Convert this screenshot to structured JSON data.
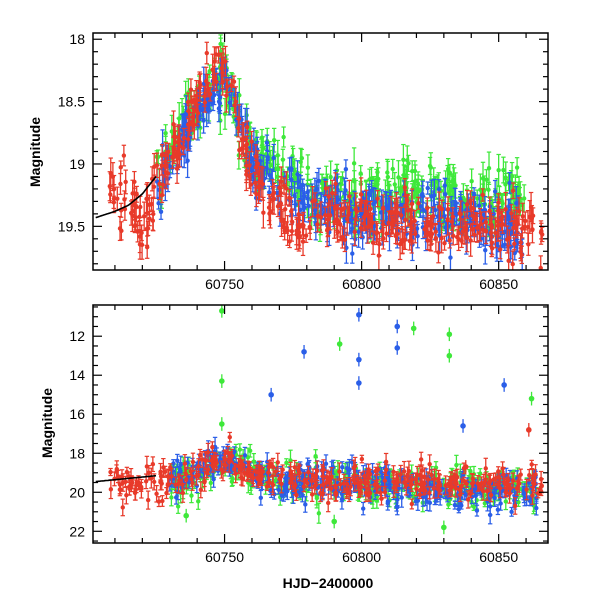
{
  "chart_data": [
    {
      "type": "scatter",
      "panel": "top",
      "title": "",
      "xlabel": "",
      "ylabel": "Magnitude",
      "xlim": [
        60702,
        60868
      ],
      "ylim": [
        19.85,
        17.95
      ],
      "y_inverted": true,
      "x_ticks": [
        60750,
        60800,
        60850
      ],
      "x_tick_labels": [
        "60750",
        "60800",
        "60850"
      ],
      "y_ticks": [
        18,
        18.5,
        19,
        19.5
      ],
      "y_tick_labels": [
        "18",
        "18.5",
        "19",
        "19.5"
      ],
      "grid": false,
      "legend": "none",
      "series": [
        {
          "color": "#e83a2a",
          "approx_x": [
            60708,
            60712,
            60716,
            60720,
            60728,
            60735,
            60742,
            60747,
            60752,
            60760,
            60775,
            60800,
            60825,
            60850,
            60866
          ],
          "approx_y": [
            19.1,
            19.3,
            19.4,
            19.5,
            19.0,
            18.8,
            18.4,
            18.1,
            18.4,
            19.1,
            19.45,
            19.45,
            19.5,
            19.5,
            19.55
          ]
        },
        {
          "color": "#2a5ee8",
          "approx_x": [
            60725,
            60740,
            60750,
            60760,
            60780,
            60800,
            60820,
            60840,
            60860
          ],
          "approx_y": [
            19.2,
            18.6,
            18.3,
            19.0,
            19.3,
            19.4,
            19.4,
            19.45,
            19.5
          ]
        },
        {
          "color": "#3ee83a",
          "approx_x": [
            60725,
            60740,
            60750,
            60760,
            60780,
            60800,
            60820,
            60840,
            60860
          ],
          "approx_y": [
            19.1,
            18.5,
            18.3,
            18.9,
            19.2,
            19.3,
            19.2,
            19.3,
            19.3
          ]
        },
        {
          "color": "#000000",
          "style": "line",
          "approx_x": [
            60703,
            60710,
            60715,
            60720,
            60725
          ],
          "approx_y": [
            19.43,
            19.38,
            19.33,
            19.24,
            19.1
          ]
        }
      ]
    },
    {
      "type": "scatter",
      "panel": "bottom",
      "title": "",
      "xlabel": "HJD−2400000",
      "ylabel": "Magnitude",
      "xlim": [
        60702,
        60868
      ],
      "ylim": [
        22.6,
        10.4
      ],
      "y_inverted": true,
      "x_ticks": [
        60750,
        60800,
        60850
      ],
      "x_tick_labels": [
        "60750",
        "60800",
        "60850"
      ],
      "y_ticks": [
        12,
        14,
        16,
        18,
        20,
        22
      ],
      "y_tick_labels": [
        "12",
        "14",
        "16",
        "18",
        "20",
        "22"
      ],
      "grid": false,
      "legend": "none",
      "series": [
        {
          "color": "#e83a2a",
          "approx_x": [
            60708,
            60715,
            60725,
            60740,
            60750,
            60760,
            60780,
            60800,
            60820,
            60840,
            60860,
            60866
          ],
          "approx_y": [
            19.3,
            19.5,
            19.2,
            18.8,
            18.2,
            19.1,
            19.4,
            19.5,
            19.5,
            19.6,
            19.5,
            19.6
          ],
          "outliers": [
            [
              60838,
              18.7
            ],
            [
              60861,
              16.8
            ]
          ]
        },
        {
          "color": "#2a5ee8",
          "approx_x": [
            60730,
            60750,
            60770,
            60790,
            60810,
            60830,
            60850,
            60865
          ],
          "approx_y": [
            19.3,
            18.4,
            19.4,
            19.6,
            19.6,
            19.8,
            19.9,
            19.8
          ],
          "outliers": [
            [
              60767,
              15.0
            ],
            [
              60779,
              12.8
            ],
            [
              60799,
              10.9
            ],
            [
              60799,
              13.2
            ],
            [
              60799,
              14.4
            ],
            [
              60813,
              11.5
            ],
            [
              60813,
              12.6
            ],
            [
              60837,
              16.6
            ],
            [
              60852,
              14.5
            ]
          ]
        },
        {
          "color": "#3ee83a",
          "approx_x": [
            60730,
            60750,
            60770,
            60790,
            60810,
            60830,
            60850,
            60865
          ],
          "approx_y": [
            19.4,
            18.5,
            19.5,
            19.6,
            19.7,
            19.8,
            19.7,
            19.8
          ],
          "outliers": [
            [
              60749,
              10.7
            ],
            [
              60749,
              14.3
            ],
            [
              60749,
              16.5
            ],
            [
              60792,
              12.4
            ],
            [
              60819,
              11.6
            ],
            [
              60832,
              11.9
            ],
            [
              60832,
              13.0
            ],
            [
              60862,
              15.2
            ],
            [
              60736,
              21.2
            ],
            [
              60790,
              21.5
            ],
            [
              60830,
              21.8
            ]
          ]
        },
        {
          "color": "#000000",
          "style": "line",
          "approx_x": [
            60703,
            60725
          ],
          "approx_y": [
            19.45,
            19.15
          ]
        }
      ]
    }
  ]
}
